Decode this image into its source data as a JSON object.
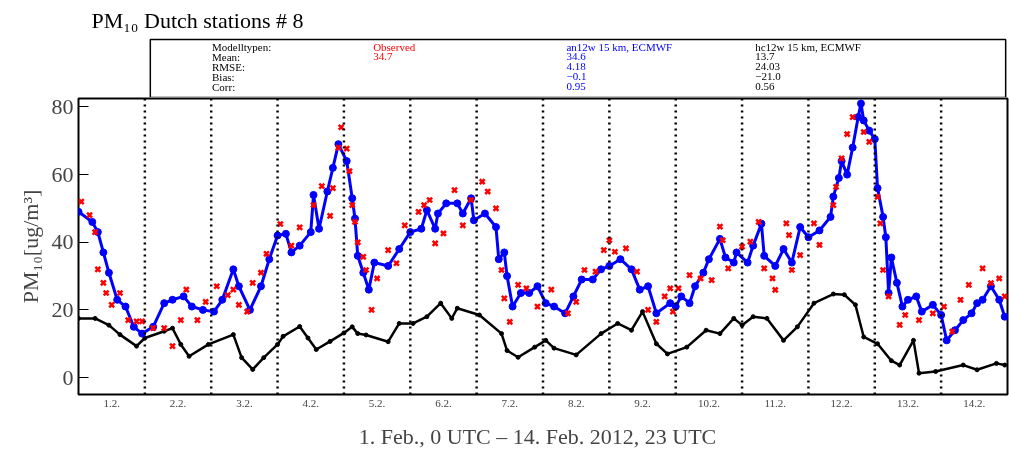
{
  "chart_data": {
    "type": "line",
    "title": "PM₁₀  Dutch stations #    8",
    "xlabel": "1. Feb., 0 UTC –  14. Feb.  2012, 23 UTC",
    "ylabel": "PM₁₀[ug/m³]",
    "annotations": [
      "Modelltypen:",
      "Mean:",
      "RMSE:",
      "Bias:",
      "Corr:",
      "34.7",
      "34.6",
      "4.18",
      "−0.1",
      "0.95",
      "13.7",
      "24.03",
      "−21.0",
      "0.56"
    ],
    "xlim": [
      "2012-02-01T00:00",
      "2012-02-15T00:00"
    ],
    "ylim": [
      -5,
      82.5
    ],
    "xticks": [
      {
        "value": "2012-02-01T12:00",
        "label": "1.2."
      },
      {
        "value": "2012-02-02T12:00",
        "label": "2.2."
      },
      {
        "value": "2012-02-03T12:00",
        "label": "3.2."
      },
      {
        "value": "2012-02-04T12:00",
        "label": "4.2."
      },
      {
        "value": "2012-02-05T12:00",
        "label": "5.2."
      },
      {
        "value": "2012-02-06T12:00",
        "label": "6.2."
      },
      {
        "value": "2012-02-07T12:00",
        "label": "7.2."
      },
      {
        "value": "2012-02-08T12:00",
        "label": "8.2."
      },
      {
        "value": "2012-02-09T12:00",
        "label": "9.2."
      },
      {
        "value": "2012-02-10T12:00",
        "label": "10.2."
      },
      {
        "value": "2012-02-11T12:00",
        "label": "11.2."
      },
      {
        "value": "2012-02-12T12:00",
        "label": "12.2."
      },
      {
        "value": "2012-02-13T12:00",
        "label": "13.2."
      },
      {
        "value": "2012-02-14T12:00",
        "label": "14.2."
      }
    ],
    "yticks": [
      0,
      20,
      40,
      60,
      80
    ],
    "grid": false,
    "ref_lines": [
      {
        "axis": "x",
        "value": "2012-02-02T00:00",
        "line_style": "dotted",
        "color": "#000000"
      },
      {
        "axis": "x",
        "value": "2012-02-03T00:00",
        "line_style": "dotted",
        "color": "#000000"
      },
      {
        "axis": "x",
        "value": "2012-02-04T00:00",
        "line_style": "dotted",
        "color": "#000000"
      },
      {
        "axis": "x",
        "value": "2012-02-05T00:00",
        "line_style": "dotted",
        "color": "#000000"
      },
      {
        "axis": "x",
        "value": "2012-02-06T00:00",
        "line_style": "dotted",
        "color": "#000000"
      },
      {
        "axis": "x",
        "value": "2012-02-07T00:00",
        "line_style": "dotted",
        "color": "#000000"
      },
      {
        "axis": "x",
        "value": "2012-02-08T00:00",
        "line_style": "dotted",
        "color": "#000000"
      },
      {
        "axis": "x",
        "value": "2012-02-09T00:00",
        "line_style": "dotted",
        "color": "#000000"
      },
      {
        "axis": "x",
        "value": "2012-02-10T00:00",
        "line_style": "dotted",
        "color": "#000000"
      },
      {
        "axis": "x",
        "value": "2012-02-11T00:00",
        "line_style": "dotted",
        "color": "#000000"
      },
      {
        "axis": "x",
        "value": "2012-02-12T00:00",
        "line_style": "dotted",
        "color": "#000000"
      },
      {
        "axis": "x",
        "value": "2012-02-13T00:00",
        "line_style": "dotted",
        "color": "#000000"
      },
      {
        "axis": "x",
        "value": "2012-02-14T00:00",
        "line_style": "dotted",
        "color": "#000000"
      }
    ],
    "series": [
      {
        "name": "Observed",
        "type": "scatter",
        "marker": "cross",
        "color": "#ff0000",
        "x": [
          "2012-02-01T01:00",
          "2012-02-01T04:00",
          "2012-02-01T06:00",
          "2012-02-01T07:00",
          "2012-02-01T09:00",
          "2012-02-01T10:00",
          "2012-02-01T12:00",
          "2012-02-01T15:00",
          "2012-02-01T18:00",
          "2012-02-01T21:00",
          "2012-02-01T23:00",
          "2012-02-02T03:00",
          "2012-02-02T07:00",
          "2012-02-02T10:00",
          "2012-02-02T13:00",
          "2012-02-02T15:00",
          "2012-02-02T19:00",
          "2012-02-02T22:00",
          "2012-02-03T02:00",
          "2012-02-03T06:00",
          "2012-02-03T08:00",
          "2012-02-03T10:00",
          "2012-02-03T13:00",
          "2012-02-03T15:00",
          "2012-02-03T18:00",
          "2012-02-03T20:00",
          "2012-02-04T01:00",
          "2012-02-04T05:00",
          "2012-02-04T08:00",
          "2012-02-04T13:00",
          "2012-02-04T16:00",
          "2012-02-04T19:00",
          "2012-02-04T20:00",
          "2012-02-04T22:00",
          "2012-02-04T23:00",
          "2012-02-05T01:00",
          "2012-02-05T02:00",
          "2012-02-05T03:00",
          "2012-02-05T04:00",
          "2012-02-05T05:00",
          "2012-02-05T07:00",
          "2012-02-05T08:00",
          "2012-02-05T10:00",
          "2012-02-05T12:00",
          "2012-02-05T16:00",
          "2012-02-05T19:00",
          "2012-02-05T22:00",
          "2012-02-06T03:00",
          "2012-02-06T05:00",
          "2012-02-06T07:00",
          "2012-02-06T09:00",
          "2012-02-06T12:00",
          "2012-02-06T16:00",
          "2012-02-06T19:00",
          "2012-02-06T22:00",
          "2012-02-07T02:00",
          "2012-02-07T04:00",
          "2012-02-07T07:00",
          "2012-02-07T09:00",
          "2012-02-07T10:00",
          "2012-02-07T12:00",
          "2012-02-07T15:00",
          "2012-02-07T18:00",
          "2012-02-07T22:00",
          "2012-02-08T03:00",
          "2012-02-08T09:00",
          "2012-02-08T12:00",
          "2012-02-08T15:00",
          "2012-02-08T19:00",
          "2012-02-08T22:00",
          "2012-02-09T00:00",
          "2012-02-09T02:00",
          "2012-02-09T06:00",
          "2012-02-09T10:00",
          "2012-02-09T14:00",
          "2012-02-09T17:00",
          "2012-02-09T20:00",
          "2012-02-09T22:00",
          "2012-02-09T23:00",
          "2012-02-10T01:00",
          "2012-02-10T05:00",
          "2012-02-10T09:00",
          "2012-02-10T13:00",
          "2012-02-10T16:00",
          "2012-02-10T17:00",
          "2012-02-10T19:00",
          "2012-02-11T00:00",
          "2012-02-11T03:00",
          "2012-02-11T06:00",
          "2012-02-11T08:00",
          "2012-02-11T11:00",
          "2012-02-11T12:00",
          "2012-02-11T16:00",
          "2012-02-11T17:00",
          "2012-02-11T18:00",
          "2012-02-11T21:00",
          "2012-02-12T02:00",
          "2012-02-12T04:00",
          "2012-02-12T09:00",
          "2012-02-12T10:00",
          "2012-02-12T12:00",
          "2012-02-12T14:00",
          "2012-02-12T16:00",
          "2012-02-12T20:00",
          "2012-02-12T22:00",
          "2012-02-13T01:00",
          "2012-02-13T02:00",
          "2012-02-13T03:00",
          "2012-02-13T05:00",
          "2012-02-13T09:00",
          "2012-02-13T11:00",
          "2012-02-13T16:00",
          "2012-02-13T21:00",
          "2012-02-14T01:00",
          "2012-02-14T04:00",
          "2012-02-14T07:00",
          "2012-02-14T10:00",
          "2012-02-14T15:00",
          "2012-02-14T18:00",
          "2012-02-14T21:00",
          "2012-02-14T23:00"
        ],
        "values": [
          52,
          48,
          43,
          32,
          28,
          25,
          21.5,
          25,
          17,
          16.6,
          16.6,
          14.6,
          14.6,
          9.3,
          17,
          26,
          17,
          22.4,
          27,
          24.4,
          26,
          21.5,
          19.5,
          28,
          31,
          36.6,
          45.4,
          39,
          44.4,
          51,
          56.6,
          47.8,
          56,
          68,
          74,
          67.7,
          61,
          51,
          46,
          40,
          35.7,
          31.8,
          20,
          29.3,
          37.7,
          33.8,
          45,
          49,
          51,
          52.5,
          39.7,
          42.6,
          55.4,
          45,
          52.5,
          57.9,
          55,
          50,
          31.8,
          23.4,
          16.5,
          27.4,
          26.4,
          21,
          26,
          19,
          22.4,
          31.8,
          31.3,
          37.7,
          40.6,
          37.2,
          38.2,
          31.3,
          20,
          16.5,
          24,
          26.4,
          19.5,
          26.4,
          30.3,
          29.3,
          28.8,
          44.6,
          40.6,
          32.3,
          38.7,
          40.2,
          46,
          32.3,
          29.3,
          25.9,
          45.6,
          42.1,
          31.8,
          36.2,
          45.6,
          39.2,
          51,
          56.4,
          64.8,
          72,
          77,
          72.6,
          69.7,
          53.4,
          45.6,
          31.8,
          24,
          15.6,
          18.5,
          17,
          19,
          21,
          13.6,
          23,
          27.4,
          32.3,
          27.9,
          29.3,
          24
        ]
      },
      {
        "name": "an12w 15 km, ECMWF",
        "marker": "circle",
        "color": "#0000ff",
        "x": [
          "2012-02-01T00:00",
          "2012-02-01T05:00",
          "2012-02-01T07:00",
          "2012-02-01T09:00",
          "2012-02-01T11:00",
          "2012-02-01T14:00",
          "2012-02-01T17:00",
          "2012-02-01T20:00",
          "2012-02-01T23:00",
          "2012-02-02T03:00",
          "2012-02-02T07:00",
          "2012-02-02T10:00",
          "2012-02-02T14:00",
          "2012-02-02T17:00",
          "2012-02-02T21:00",
          "2012-02-03T01:00",
          "2012-02-03T04:00",
          "2012-02-03T08:00",
          "2012-02-03T10:00",
          "2012-02-03T14:00",
          "2012-02-03T18:00",
          "2012-02-03T21:00",
          "2012-02-04T00:00",
          "2012-02-04T03:00",
          "2012-02-04T05:00",
          "2012-02-04T08:00",
          "2012-02-04T12:00",
          "2012-02-04T13:00",
          "2012-02-04T15:00",
          "2012-02-04T18:00",
          "2012-02-04T20:00",
          "2012-02-04T22:00",
          "2012-02-05T01:00",
          "2012-02-05T03:00",
          "2012-02-05T04:00",
          "2012-02-05T05:00",
          "2012-02-05T07:00",
          "2012-02-05T09:00",
          "2012-02-05T11:00",
          "2012-02-05T16:00",
          "2012-02-05T20:00",
          "2012-02-06T00:00",
          "2012-02-06T04:00",
          "2012-02-06T06:00",
          "2012-02-06T09:00",
          "2012-02-06T10:00",
          "2012-02-06T13:00",
          "2012-02-06T17:00",
          "2012-02-06T19:00",
          "2012-02-06T22:00",
          "2012-02-06T23:00",
          "2012-02-07T03:00",
          "2012-02-07T07:00",
          "2012-02-07T08:00",
          "2012-02-07T10:00",
          "2012-02-07T11:00",
          "2012-02-07T13:00",
          "2012-02-07T16:00",
          "2012-02-07T19:00",
          "2012-02-07T22:00",
          "2012-02-08T01:00",
          "2012-02-08T04:00",
          "2012-02-08T08:00",
          "2012-02-08T11:00",
          "2012-02-08T14:00",
          "2012-02-08T18:00",
          "2012-02-08T21:00",
          "2012-02-09T00:00",
          "2012-02-09T04:00",
          "2012-02-09T08:00",
          "2012-02-09T11:00",
          "2012-02-09T14:00",
          "2012-02-09T17:00",
          "2012-02-09T22:00",
          "2012-02-10T00:00",
          "2012-02-10T02:00",
          "2012-02-10T05:00",
          "2012-02-10T07:00",
          "2012-02-10T10:00",
          "2012-02-10T12:00",
          "2012-02-10T16:00",
          "2012-02-10T18:00",
          "2012-02-10T21:00",
          "2012-02-10T22:00",
          "2012-02-11T02:00",
          "2012-02-11T04:00",
          "2012-02-11T07:00",
          "2012-02-11T08:00",
          "2012-02-11T12:00",
          "2012-02-11T15:00",
          "2012-02-11T18:00",
          "2012-02-11T21:00",
          "2012-02-12T00:00",
          "2012-02-12T04:00",
          "2012-02-12T08:00",
          "2012-02-12T09:00",
          "2012-02-12T11:00",
          "2012-02-12T12:00",
          "2012-02-12T14:00",
          "2012-02-12T16:00",
          "2012-02-12T18:00",
          "2012-02-12T19:00",
          "2012-02-12T20:00",
          "2012-02-12T22:00",
          "2012-02-13T00:00",
          "2012-02-13T01:00",
          "2012-02-13T03:00",
          "2012-02-13T04:00",
          "2012-02-13T05:00",
          "2012-02-13T06:00",
          "2012-02-13T08:00",
          "2012-02-13T10:00",
          "2012-02-13T12:00",
          "2012-02-13T15:00",
          "2012-02-13T17:00",
          "2012-02-13T21:00",
          "2012-02-14T00:00",
          "2012-02-14T02:00",
          "2012-02-14T05:00",
          "2012-02-14T08:00",
          "2012-02-14T11:00",
          "2012-02-14T13:00",
          "2012-02-14T15:00",
          "2012-02-14T18:00",
          "2012-02-14T21:00",
          "2012-02-14T23:00"
        ],
        "values": [
          49,
          46,
          43,
          37,
          31,
          23,
          21,
          15,
          13,
          15,
          22,
          23,
          24,
          21,
          20,
          19.5,
          23,
          32,
          27,
          20,
          27,
          35,
          42,
          42.5,
          37,
          39,
          43,
          54,
          44,
          55,
          62,
          69,
          64,
          53,
          47,
          36,
          31,
          26,
          34,
          33,
          38,
          43,
          44,
          49.5,
          44,
          48.5,
          51.5,
          51.5,
          48.5,
          53,
          46.5,
          48.5,
          44.5,
          35,
          37,
          30,
          21,
          25,
          25,
          27,
          22,
          21,
          19,
          24,
          29,
          29,
          32,
          33,
          35,
          32,
          26,
          27,
          19,
          22,
          21,
          24,
          22,
          27,
          31,
          35,
          41,
          35.5,
          34,
          37,
          34,
          39,
          45.5,
          36,
          33,
          38,
          34,
          44.5,
          41.5,
          43.5,
          47.5,
          53.5,
          59,
          64,
          60,
          68,
          77,
          81,
          76,
          73,
          70.5,
          56,
          47.5,
          41.5,
          25,
          35.5,
          28,
          21,
          23,
          24,
          19.5,
          21.5,
          18.5,
          11,
          14,
          17,
          19,
          22,
          23,
          27,
          23,
          18
        ]
      },
      {
        "name": "hc12w 15 km, ECMWF",
        "marker": "circle",
        "color": "#000000",
        "x": [
          "2012-02-01T00:00",
          "2012-02-01T06:00",
          "2012-02-01T11:00",
          "2012-02-01T15:00",
          "2012-02-01T21:00",
          "2012-02-02T00:00",
          "2012-02-02T07:00",
          "2012-02-02T10:00",
          "2012-02-02T13:00",
          "2012-02-02T16:00",
          "2012-02-02T23:00",
          "2012-02-03T08:00",
          "2012-02-03T11:00",
          "2012-02-03T15:00",
          "2012-02-03T19:00",
          "2012-02-04T00:00",
          "2012-02-04T02:00",
          "2012-02-04T08:00",
          "2012-02-04T11:00",
          "2012-02-04T14:00",
          "2012-02-04T19:00",
          "2012-02-05T00:00",
          "2012-02-05T03:00",
          "2012-02-05T05:00",
          "2012-02-05T08:00",
          "2012-02-05T16:00",
          "2012-02-05T20:00",
          "2012-02-06T01:00",
          "2012-02-06T06:00",
          "2012-02-06T11:00",
          "2012-02-06T15:00",
          "2012-02-06T17:00",
          "2012-02-07T01:00",
          "2012-02-07T09:00",
          "2012-02-07T11:00",
          "2012-02-07T15:00",
          "2012-02-07T21:00",
          "2012-02-08T01:00",
          "2012-02-08T04:00",
          "2012-02-08T12:00",
          "2012-02-08T21:00",
          "2012-02-09T03:00",
          "2012-02-09T08:00",
          "2012-02-09T12:00",
          "2012-02-09T17:00",
          "2012-02-09T21:00",
          "2012-02-10T04:00",
          "2012-02-10T11:00",
          "2012-02-10T16:00",
          "2012-02-10T21:00",
          "2012-02-11T00:00",
          "2012-02-11T04:00",
          "2012-02-11T09:00",
          "2012-02-11T15:00",
          "2012-02-11T20:00",
          "2012-02-12T02:00",
          "2012-02-12T09:00",
          "2012-02-12T13:00",
          "2012-02-12T17:00",
          "2012-02-12T20:00",
          "2012-02-13T01:00",
          "2012-02-13T06:00",
          "2012-02-13T09:00",
          "2012-02-13T14:00",
          "2012-02-13T16:00",
          "2012-02-13T22:00",
          "2012-02-14T08:00",
          "2012-02-14T13:00",
          "2012-02-14T20:00",
          "2012-02-14T23:00"
        ],
        "values": [
          17.5,
          17.5,
          15.5,
          12.7,
          9.3,
          11.7,
          13.7,
          14.6,
          9.8,
          6.3,
          9.8,
          12.7,
          5.9,
          2.4,
          5.9,
          9.8,
          12.2,
          15.1,
          11.7,
          8.3,
          10.7,
          13.2,
          15,
          13,
          12.6,
          10.6,
          16,
          16,
          18,
          22,
          17.5,
          20.5,
          18.5,
          13,
          8,
          6,
          9,
          11,
          8.7,
          6.7,
          13,
          16,
          14,
          19.5,
          10,
          7,
          9,
          14,
          13,
          17.5,
          15.5,
          18,
          17.5,
          11,
          15,
          22,
          24.7,
          24.5,
          21.5,
          12,
          10,
          5,
          3.7,
          11,
          1.3,
          1.8,
          3.7,
          2.3,
          4.2,
          3.7
        ]
      }
    ]
  }
}
